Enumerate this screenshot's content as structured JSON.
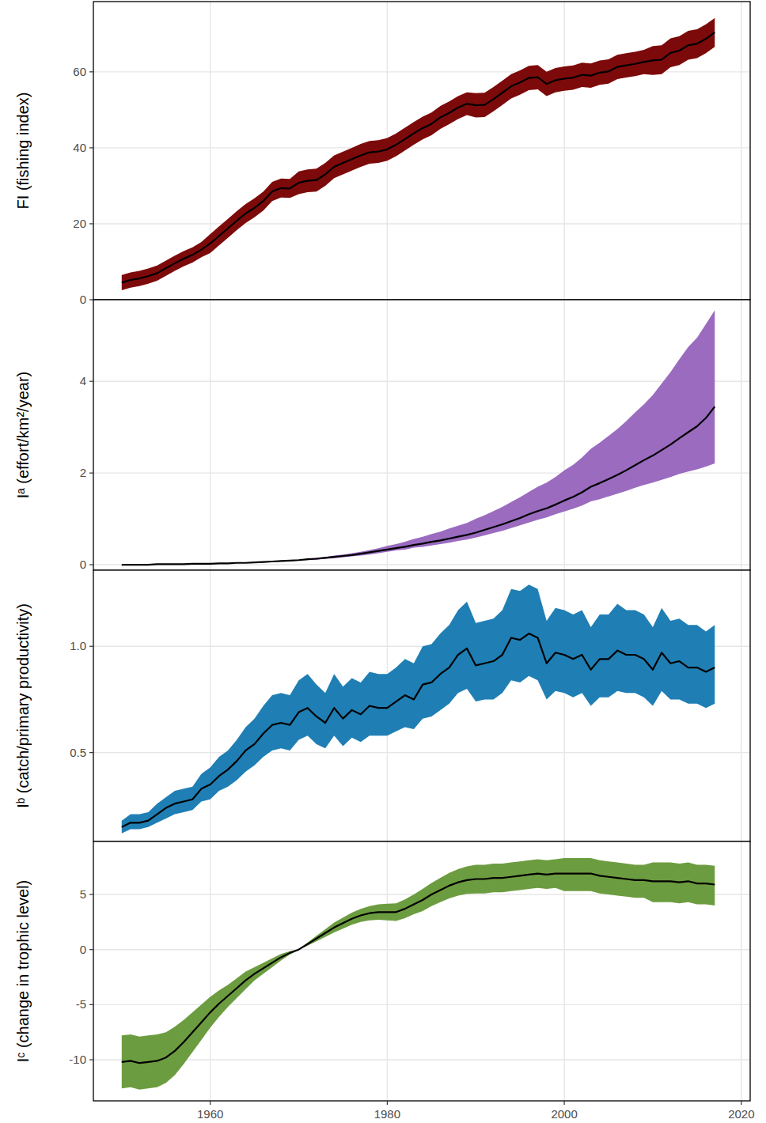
{
  "chart_data": {
    "type": "line",
    "grid": true,
    "x": [
      1950,
      1951,
      1952,
      1953,
      1954,
      1955,
      1956,
      1957,
      1958,
      1959,
      1960,
      1961,
      1962,
      1963,
      1964,
      1965,
      1966,
      1967,
      1968,
      1969,
      1970,
      1971,
      1972,
      1973,
      1974,
      1975,
      1976,
      1977,
      1978,
      1979,
      1980,
      1981,
      1982,
      1983,
      1984,
      1985,
      1986,
      1987,
      1988,
      1989,
      1990,
      1991,
      1992,
      1993,
      1994,
      1995,
      1996,
      1997,
      1998,
      1999,
      2000,
      2001,
      2002,
      2003,
      2004,
      2005,
      2006,
      2007,
      2008,
      2009,
      2010,
      2011,
      2012,
      2013,
      2014,
      2015,
      2016,
      2017
    ],
    "xlim": [
      1946.8,
      2021
    ],
    "xticks": [
      1960,
      1980,
      2000,
      2020
    ],
    "panels": [
      {
        "ylabel": "FI (fishing index)",
        "ylim": [
          0,
          78.5
        ],
        "yticks": [
          0,
          20,
          40,
          60
        ],
        "series": [
          {
            "color": "#7d0a0a",
            "values": [
              4.5,
              5.2,
              5.6,
              6.2,
              7.0,
              8.3,
              9.6,
              10.8,
              11.8,
              13.2,
              14.8,
              16.8,
              18.8,
              20.8,
              22.7,
              24.2,
              26.0,
              28.5,
              29.4,
              29.3,
              30.8,
              31.3,
              31.5,
              33.0,
              35.0,
              36.0,
              37.0,
              38.0,
              38.8,
              39.0,
              39.6,
              40.8,
              42.3,
              43.8,
              45.2,
              46.3,
              48.0,
              49.2,
              50.6,
              51.6,
              51.2,
              51.3,
              52.8,
              54.5,
              56.2,
              57.2,
              58.4,
              58.6,
              56.8,
              57.8,
              58.2,
              58.5,
              59.2,
              59.0,
              59.8,
              60.1,
              61.3,
              61.7,
              62.1,
              62.6,
              63.0,
              63.2,
              65.0,
              65.6,
              67.0,
              67.4,
              68.7,
              70.4
            ],
            "lower": [
              2.5,
              3.2,
              3.6,
              4.2,
              5.0,
              6.3,
              7.6,
              8.8,
              9.8,
              11.2,
              12.3,
              14.3,
              16.3,
              18.3,
              20.2,
              21.7,
              23.5,
              26.0,
              26.9,
              26.8,
              27.8,
              28.3,
              28.5,
              30.0,
              32.0,
              33.0,
              34.0,
              35.0,
              35.8,
              36.0,
              36.6,
              37.8,
              39.3,
              40.8,
              42.2,
              43.3,
              45.0,
              46.2,
              47.6,
              48.6,
              48.0,
              48.1,
              49.6,
              51.3,
              53.0,
              54.0,
              55.2,
              55.4,
              53.6,
              54.6,
              55.0,
              55.3,
              56.0,
              55.8,
              56.6,
              56.9,
              58.1,
              58.5,
              58.9,
              59.4,
              59.2,
              59.4,
              61.2,
              61.8,
              63.2,
              63.6,
              64.9,
              66.6
            ],
            "upper": [
              6.5,
              7.2,
              7.6,
              8.2,
              9.0,
              10.3,
              11.6,
              12.8,
              13.8,
              15.2,
              17.3,
              19.3,
              21.3,
              23.3,
              25.2,
              26.7,
              28.5,
              31.0,
              31.9,
              31.8,
              33.8,
              34.3,
              34.5,
              36.0,
              38.0,
              39.0,
              40.0,
              41.0,
              41.8,
              42.0,
              42.6,
              43.8,
              45.3,
              46.8,
              48.2,
              49.3,
              51.0,
              52.2,
              53.6,
              54.6,
              54.4,
              54.5,
              56.0,
              57.7,
              59.4,
              60.4,
              61.6,
              61.8,
              60.0,
              61.0,
              61.4,
              61.7,
              62.4,
              62.2,
              63.0,
              63.3,
              64.5,
              64.9,
              65.3,
              65.8,
              66.8,
              67.0,
              68.8,
              69.4,
              70.8,
              71.2,
              72.5,
              74.2
            ]
          }
        ]
      },
      {
        "ylabel": "Iᵃ (effort/km²/year)",
        "ylim": [
          -0.12,
          5.78
        ],
        "yticks": [
          0,
          2,
          4
        ],
        "series": [
          {
            "color": "#9a6bbf",
            "values": [
              0.0,
              0.0,
              0.0,
              0.0,
              0.01,
              0.01,
              0.01,
              0.01,
              0.02,
              0.02,
              0.02,
              0.03,
              0.03,
              0.04,
              0.04,
              0.05,
              0.06,
              0.07,
              0.08,
              0.09,
              0.1,
              0.12,
              0.13,
              0.15,
              0.17,
              0.19,
              0.21,
              0.24,
              0.27,
              0.3,
              0.33,
              0.36,
              0.39,
              0.43,
              0.46,
              0.5,
              0.53,
              0.57,
              0.61,
              0.65,
              0.7,
              0.76,
              0.82,
              0.88,
              0.95,
              1.02,
              1.1,
              1.17,
              1.23,
              1.31,
              1.4,
              1.48,
              1.58,
              1.7,
              1.78,
              1.87,
              1.96,
              2.06,
              2.17,
              2.28,
              2.38,
              2.5,
              2.62,
              2.76,
              2.89,
              3.02,
              3.2,
              3.45
            ],
            "lower": [
              0.0,
              0.0,
              0.0,
              0.0,
              0.01,
              0.01,
              0.01,
              0.01,
              0.02,
              0.02,
              0.02,
              0.03,
              0.03,
              0.04,
              0.04,
              0.05,
              0.05,
              0.06,
              0.07,
              0.08,
              0.09,
              0.1,
              0.11,
              0.13,
              0.14,
              0.16,
              0.18,
              0.2,
              0.22,
              0.25,
              0.28,
              0.31,
              0.33,
              0.37,
              0.39,
              0.42,
              0.45,
              0.48,
              0.52,
              0.55,
              0.59,
              0.64,
              0.69,
              0.74,
              0.8,
              0.86,
              0.92,
              0.98,
              1.03,
              1.1,
              1.16,
              1.22,
              1.29,
              1.38,
              1.43,
              1.49,
              1.55,
              1.61,
              1.68,
              1.74,
              1.79,
              1.85,
              1.91,
              1.98,
              2.03,
              2.08,
              2.14,
              2.21
            ],
            "upper": [
              0.0,
              0.0,
              0.0,
              0.0,
              0.01,
              0.01,
              0.01,
              0.01,
              0.02,
              0.02,
              0.02,
              0.03,
              0.03,
              0.04,
              0.05,
              0.06,
              0.07,
              0.08,
              0.09,
              0.1,
              0.11,
              0.13,
              0.15,
              0.17,
              0.2,
              0.22,
              0.25,
              0.28,
              0.32,
              0.36,
              0.41,
              0.45,
              0.5,
              0.56,
              0.61,
              0.67,
              0.72,
              0.79,
              0.85,
              0.91,
              1.0,
              1.08,
              1.17,
              1.26,
              1.37,
              1.47,
              1.59,
              1.7,
              1.79,
              1.91,
              2.06,
              2.18,
              2.34,
              2.53,
              2.66,
              2.81,
              2.96,
              3.13,
              3.32,
              3.5,
              3.7,
              3.95,
              4.2,
              4.48,
              4.75,
              4.95,
              5.25,
              5.55
            ]
          }
        ]
      },
      {
        "ylabel": "Iᵇ (catch/primary productivity)",
        "ylim": [
          0.082,
          1.358
        ],
        "yticks": [
          0.5,
          {
            "value": 1,
            "label": "1.0"
          }
        ],
        "series": [
          {
            "color": "#1f7fb4",
            "values": [
              0.15,
              0.17,
              0.17,
              0.18,
              0.21,
              0.24,
              0.26,
              0.27,
              0.28,
              0.33,
              0.35,
              0.39,
              0.42,
              0.46,
              0.51,
              0.54,
              0.59,
              0.63,
              0.64,
              0.63,
              0.69,
              0.71,
              0.67,
              0.64,
              0.71,
              0.66,
              0.7,
              0.68,
              0.72,
              0.71,
              0.71,
              0.74,
              0.77,
              0.75,
              0.82,
              0.83,
              0.87,
              0.9,
              0.96,
              0.99,
              0.91,
              0.92,
              0.93,
              0.96,
              1.04,
              1.03,
              1.06,
              1.04,
              0.92,
              0.97,
              0.96,
              0.94,
              0.96,
              0.89,
              0.94,
              0.94,
              0.98,
              0.96,
              0.96,
              0.94,
              0.89,
              0.97,
              0.92,
              0.93,
              0.9,
              0.9,
              0.88,
              0.9
            ],
            "lower": [
              0.12,
              0.14,
              0.14,
              0.15,
              0.17,
              0.19,
              0.21,
              0.22,
              0.23,
              0.27,
              0.28,
              0.32,
              0.34,
              0.37,
              0.41,
              0.44,
              0.48,
              0.51,
              0.52,
              0.51,
              0.56,
              0.58,
              0.54,
              0.52,
              0.58,
              0.53,
              0.57,
              0.55,
              0.58,
              0.58,
              0.58,
              0.6,
              0.62,
              0.61,
              0.66,
              0.67,
              0.7,
              0.73,
              0.78,
              0.8,
              0.74,
              0.75,
              0.75,
              0.78,
              0.84,
              0.83,
              0.86,
              0.84,
              0.75,
              0.79,
              0.78,
              0.76,
              0.78,
              0.72,
              0.76,
              0.76,
              0.79,
              0.78,
              0.78,
              0.76,
              0.72,
              0.79,
              0.75,
              0.75,
              0.73,
              0.73,
              0.71,
              0.73
            ],
            "upper": [
              0.18,
              0.21,
              0.21,
              0.22,
              0.26,
              0.29,
              0.32,
              0.33,
              0.34,
              0.4,
              0.43,
              0.48,
              0.51,
              0.56,
              0.62,
              0.66,
              0.72,
              0.77,
              0.78,
              0.77,
              0.84,
              0.87,
              0.82,
              0.78,
              0.87,
              0.81,
              0.85,
              0.83,
              0.88,
              0.87,
              0.87,
              0.9,
              0.94,
              0.92,
              1.0,
              1.01,
              1.06,
              1.1,
              1.17,
              1.21,
              1.11,
              1.12,
              1.13,
              1.17,
              1.27,
              1.26,
              1.29,
              1.27,
              1.12,
              1.18,
              1.17,
              1.15,
              1.17,
              1.09,
              1.15,
              1.15,
              1.2,
              1.17,
              1.17,
              1.15,
              1.09,
              1.18,
              1.12,
              1.13,
              1.1,
              1.1,
              1.07,
              1.1
            ]
          }
        ]
      },
      {
        "ylabel": "Iᶜ (change in trophic level)",
        "ylim": [
          -13.73,
          9.81
        ],
        "yticks": [
          -10,
          -5,
          0,
          5
        ],
        "series": [
          {
            "color": "#6c9c40",
            "values": [
              -10.2,
              -10.1,
              -10.3,
              -10.2,
              -10.1,
              -9.8,
              -9.2,
              -8.4,
              -7.5,
              -6.6,
              -5.7,
              -4.9,
              -4.2,
              -3.5,
              -2.8,
              -2.2,
              -1.7,
              -1.2,
              -0.7,
              -0.3,
              0.0,
              0.5,
              1.0,
              1.5,
              2.0,
              2.4,
              2.8,
              3.1,
              3.3,
              3.4,
              3.4,
              3.4,
              3.7,
              4.1,
              4.5,
              5.0,
              5.4,
              5.8,
              6.1,
              6.3,
              6.4,
              6.4,
              6.5,
              6.5,
              6.6,
              6.7,
              6.8,
              6.9,
              6.8,
              6.9,
              6.9,
              6.9,
              6.9,
              6.9,
              6.7,
              6.6,
              6.5,
              6.4,
              6.3,
              6.3,
              6.2,
              6.2,
              6.2,
              6.1,
              6.2,
              6.0,
              6.0,
              5.9
            ],
            "lower": [
              -12.6,
              -12.5,
              -12.7,
              -12.6,
              -12.5,
              -12.1,
              -11.4,
              -10.4,
              -9.3,
              -8.2,
              -7.1,
              -6.1,
              -5.2,
              -4.4,
              -3.6,
              -2.8,
              -2.2,
              -1.6,
              -1.0,
              -0.45,
              0.0,
              0.35,
              0.75,
              1.15,
              1.55,
              1.9,
              2.25,
              2.5,
              2.65,
              2.7,
              2.65,
              2.6,
              2.85,
              3.2,
              3.5,
              3.95,
              4.3,
              4.65,
              4.9,
              5.05,
              5.1,
              5.1,
              5.2,
              5.2,
              5.3,
              5.4,
              5.5,
              5.6,
              5.5,
              5.6,
              5.3,
              5.3,
              5.3,
              5.3,
              5.1,
              5.0,
              4.9,
              4.8,
              4.7,
              4.7,
              4.3,
              4.3,
              4.3,
              4.2,
              4.3,
              4.1,
              4.1,
              4.0
            ],
            "upper": [
              -7.8,
              -7.7,
              -7.9,
              -7.8,
              -7.7,
              -7.5,
              -7.0,
              -6.4,
              -5.7,
              -5.0,
              -4.3,
              -3.7,
              -3.2,
              -2.6,
              -2.0,
              -1.6,
              -1.2,
              -0.8,
              -0.4,
              -0.15,
              0.0,
              0.65,
              1.25,
              1.85,
              2.45,
              2.9,
              3.35,
              3.7,
              3.95,
              4.1,
              4.15,
              4.2,
              4.55,
              5.0,
              5.5,
              6.05,
              6.5,
              6.95,
              7.3,
              7.55,
              7.7,
              7.7,
              7.8,
              7.8,
              7.9,
              8.0,
              8.1,
              8.2,
              8.1,
              8.2,
              8.3,
              8.3,
              8.3,
              8.3,
              8.1,
              8.0,
              7.9,
              7.8,
              7.7,
              7.7,
              7.9,
              7.9,
              7.9,
              7.8,
              7.9,
              7.7,
              7.7,
              7.6
            ]
          }
        ]
      }
    ]
  }
}
